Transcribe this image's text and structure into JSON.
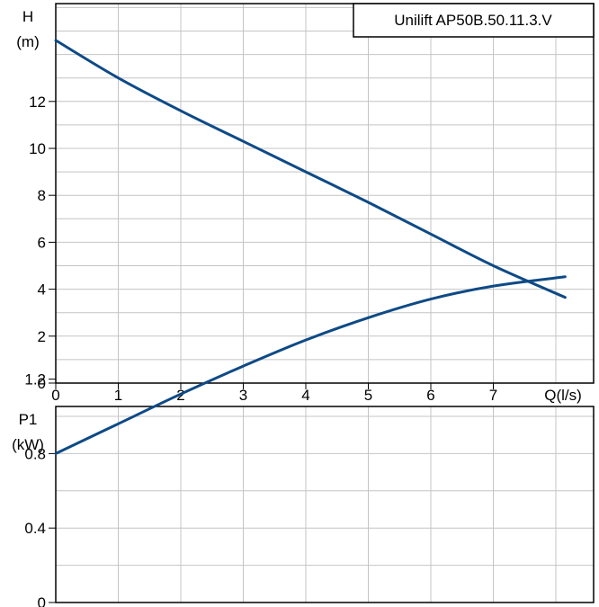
{
  "chart_data": [
    {
      "type": "line",
      "title": "Unilift AP50B.50.11.3.V",
      "ylabel_line1": "H",
      "ylabel_line2": "(m)",
      "xlabel": "Q(l/s)",
      "x_ticks": [
        "0",
        "1",
        "2",
        "3",
        "4",
        "5",
        "6",
        "7"
      ],
      "y_ticks": [
        "0",
        "2",
        "4",
        "6",
        "8",
        "10",
        "12"
      ],
      "xlim": [
        0,
        8.6
      ],
      "ylim": [
        0,
        16
      ],
      "grid": true,
      "series": [
        {
          "x": [
            0,
            1,
            2,
            3,
            4,
            5,
            6,
            7,
            8.15
          ],
          "values": [
            14.6,
            13.0,
            11.6,
            10.3,
            9.0,
            7.7,
            6.35,
            5.0,
            3.65
          ]
        }
      ]
    },
    {
      "type": "line",
      "ylabel_line1": "P1",
      "ylabel_line2": "(kW)",
      "y_ticks": [
        "0",
        "0.4",
        "0.8",
        "1.2"
      ],
      "xlim": [
        0,
        8.6
      ],
      "ylim": [
        0,
        2.0
      ],
      "grid": true,
      "series": [
        {
          "x": [
            0,
            1,
            2,
            3,
            4,
            5,
            6,
            7,
            8.15
          ],
          "values": [
            0.8,
            0.96,
            1.12,
            1.27,
            1.41,
            1.53,
            1.63,
            1.7,
            1.75
          ]
        }
      ]
    }
  ],
  "colors": {
    "curve": "#0e4a86",
    "grid": "#c4c4c4",
    "frame": "#000000"
  }
}
